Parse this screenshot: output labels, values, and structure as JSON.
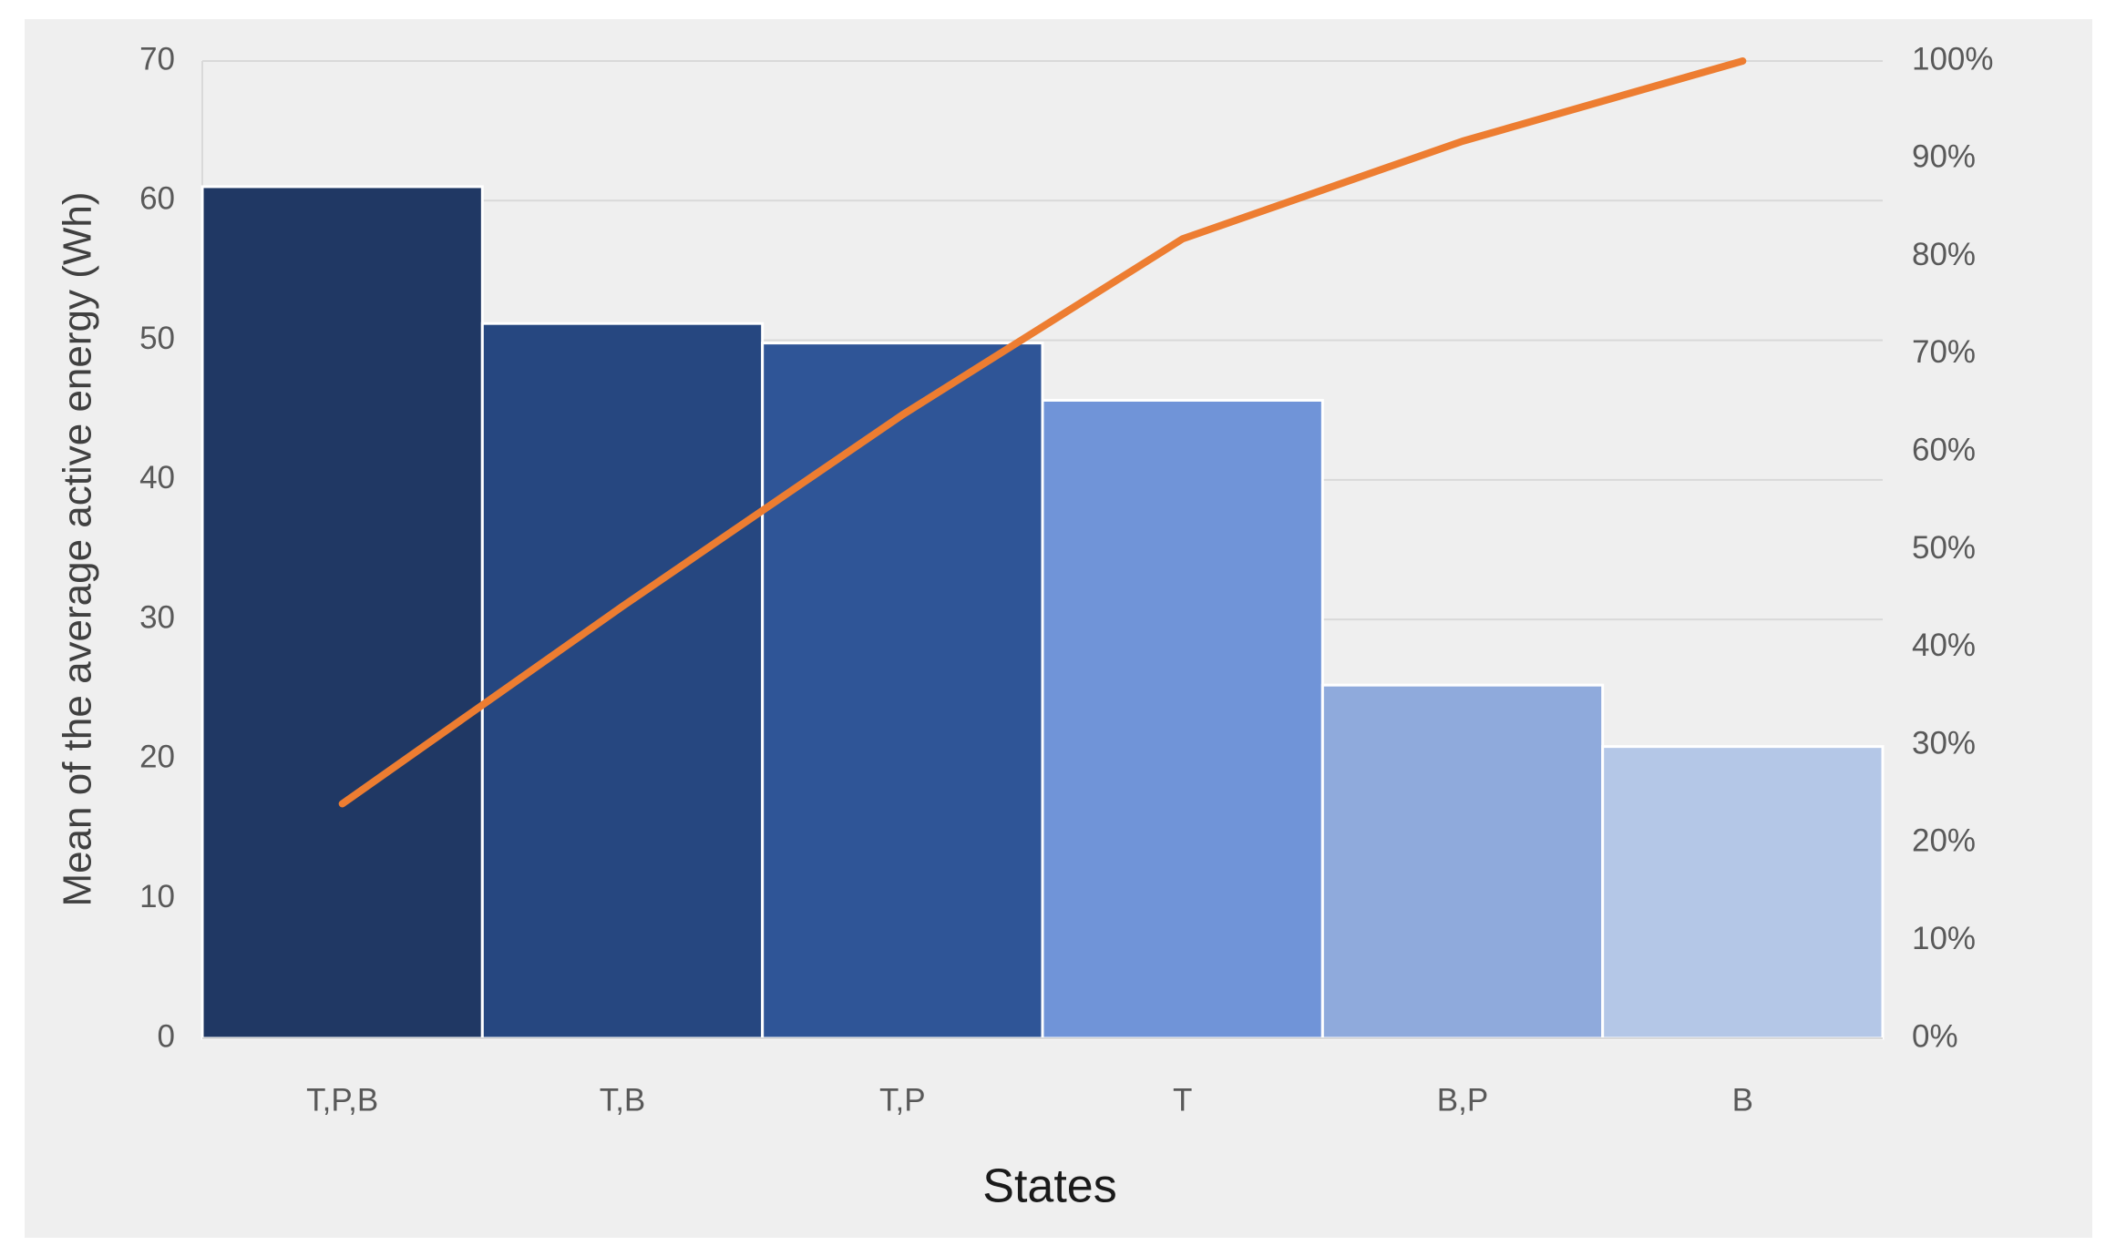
{
  "chart_data": {
    "type": "pareto",
    "x_label": "States",
    "y_label": "Mean of the average active energy (Wh)",
    "categories": [
      "T,P,B",
      "T,B",
      "T,P",
      "T",
      "B,P",
      "B"
    ],
    "series": [
      {
        "type": "bar",
        "colors": [
          "#203864",
          "#264780",
          "#2f5597",
          "#7094d8",
          "#8faadc",
          "#b4c7e7"
        ],
        "values": [
          61,
          51.2,
          49.8,
          45.7,
          25.3,
          20.9
        ]
      },
      {
        "type": "line",
        "axis": "y2",
        "color": "#ed7d31",
        "values": [
          24.0,
          44.2,
          63.8,
          81.8,
          91.8,
          100
        ]
      }
    ],
    "ylim": [
      0,
      70
    ],
    "yticks": [
      0,
      10,
      20,
      30,
      40,
      50,
      60,
      70
    ],
    "y2lim": [
      0,
      100
    ],
    "y2ticks": [
      {
        "value": 0,
        "label": "0%"
      },
      {
        "value": 10,
        "label": "10%"
      },
      {
        "value": 20,
        "label": "20%"
      },
      {
        "value": 30,
        "label": "30%"
      },
      {
        "value": 40,
        "label": "40%"
      },
      {
        "value": 50,
        "label": "50%"
      },
      {
        "value": 60,
        "label": "60%"
      },
      {
        "value": 70,
        "label": "70%"
      },
      {
        "value": 80,
        "label": "80%"
      },
      {
        "value": 90,
        "label": "90%"
      },
      {
        "value": 100,
        "label": "100%"
      }
    ],
    "grid": true
  }
}
